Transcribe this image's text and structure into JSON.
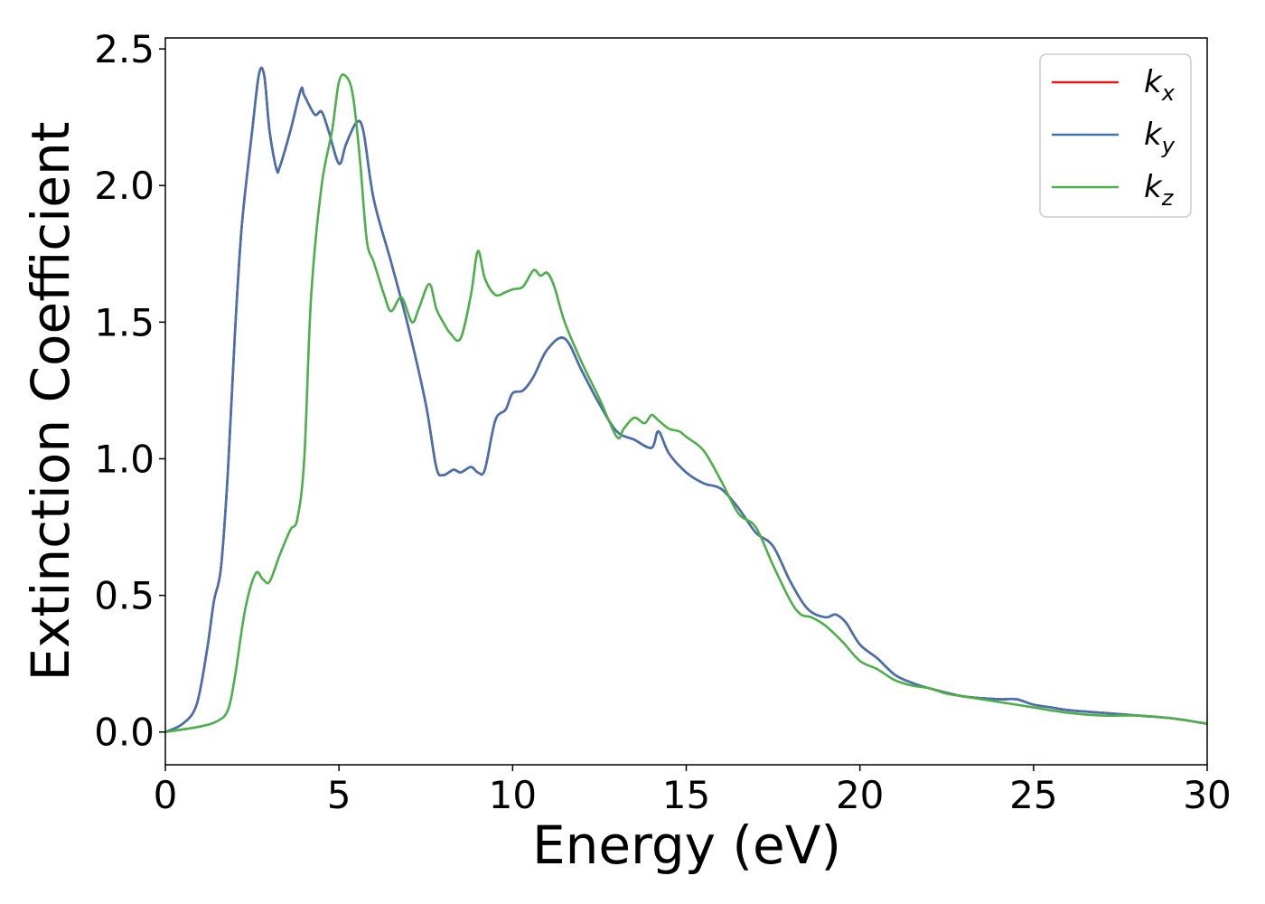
{
  "chart_data": {
    "type": "line",
    "title": "",
    "xlabel": "Energy (eV)",
    "ylabel": "Extinction Coefficient",
    "xlim": [
      0,
      30
    ],
    "ylim": [
      -0.12,
      2.54
    ],
    "xticks": [
      "0",
      "5",
      "10",
      "15",
      "20",
      "25",
      "30"
    ],
    "yticks": [
      "0.0",
      "0.5",
      "1.0",
      "1.5",
      "2.0",
      "2.5"
    ],
    "grid": false,
    "legend_position": "top-right",
    "series": [
      {
        "name": "k",
        "subscript": "x",
        "color": "#e41a1c",
        "x": [
          0,
          0.5,
          0.9,
          1.2,
          1.4,
          1.6,
          1.8,
          2.0,
          2.2,
          2.5,
          2.7,
          2.85,
          3.0,
          3.2,
          3.3,
          3.6,
          3.9,
          4.0,
          4.3,
          4.5,
          4.7,
          5.0,
          5.2,
          5.5,
          5.7,
          6.0,
          6.5,
          7.0,
          7.5,
          7.8,
          8.0,
          8.3,
          8.5,
          8.8,
          9.0,
          9.2,
          9.5,
          9.8,
          10.0,
          10.3,
          10.6,
          11.0,
          11.5,
          12.0,
          12.5,
          13.0,
          13.5,
          14.0,
          14.2,
          14.5,
          15.0,
          15.5,
          16.0,
          16.5,
          17.0,
          17.5,
          18.0,
          18.5,
          19.0,
          19.3,
          19.6,
          20.0,
          20.5,
          21.0,
          21.5,
          22.0,
          23.0,
          24.0,
          24.5,
          25.0,
          25.5,
          26.0,
          27.0,
          28.0,
          29.0,
          30.0
        ],
        "y": [
          0.0,
          0.03,
          0.1,
          0.3,
          0.48,
          0.6,
          0.95,
          1.45,
          1.85,
          2.2,
          2.41,
          2.4,
          2.2,
          2.06,
          2.07,
          2.2,
          2.35,
          2.33,
          2.26,
          2.27,
          2.2,
          2.08,
          2.15,
          2.23,
          2.2,
          1.95,
          1.72,
          1.48,
          1.2,
          0.97,
          0.94,
          0.96,
          0.95,
          0.97,
          0.95,
          0.96,
          1.14,
          1.18,
          1.24,
          1.25,
          1.3,
          1.4,
          1.44,
          1.32,
          1.2,
          1.1,
          1.07,
          1.04,
          1.1,
          1.02,
          0.95,
          0.91,
          0.89,
          0.82,
          0.73,
          0.68,
          0.55,
          0.45,
          0.42,
          0.43,
          0.4,
          0.32,
          0.27,
          0.21,
          0.18,
          0.16,
          0.13,
          0.12,
          0.12,
          0.1,
          0.09,
          0.08,
          0.07,
          0.06,
          0.05,
          0.03
        ]
      },
      {
        "name": "k",
        "subscript": "y",
        "color": "#4472b0",
        "x": [
          0,
          0.5,
          0.9,
          1.2,
          1.4,
          1.6,
          1.8,
          2.0,
          2.2,
          2.5,
          2.7,
          2.85,
          3.0,
          3.2,
          3.3,
          3.6,
          3.9,
          4.0,
          4.3,
          4.5,
          4.7,
          5.0,
          5.2,
          5.5,
          5.7,
          6.0,
          6.5,
          7.0,
          7.5,
          7.8,
          8.0,
          8.3,
          8.5,
          8.8,
          9.0,
          9.2,
          9.5,
          9.8,
          10.0,
          10.3,
          10.6,
          11.0,
          11.5,
          12.0,
          12.5,
          13.0,
          13.5,
          14.0,
          14.2,
          14.5,
          15.0,
          15.5,
          16.0,
          16.5,
          17.0,
          17.5,
          18.0,
          18.5,
          19.0,
          19.3,
          19.6,
          20.0,
          20.5,
          21.0,
          21.5,
          22.0,
          23.0,
          24.0,
          24.5,
          25.0,
          25.5,
          26.0,
          27.0,
          28.0,
          29.0,
          30.0
        ],
        "y": [
          0.0,
          0.03,
          0.1,
          0.3,
          0.48,
          0.6,
          0.95,
          1.45,
          1.85,
          2.2,
          2.41,
          2.4,
          2.2,
          2.06,
          2.07,
          2.2,
          2.35,
          2.33,
          2.26,
          2.27,
          2.2,
          2.08,
          2.15,
          2.23,
          2.2,
          1.95,
          1.72,
          1.48,
          1.2,
          0.97,
          0.94,
          0.96,
          0.95,
          0.97,
          0.95,
          0.96,
          1.14,
          1.18,
          1.24,
          1.25,
          1.3,
          1.4,
          1.44,
          1.32,
          1.2,
          1.1,
          1.07,
          1.04,
          1.1,
          1.02,
          0.95,
          0.91,
          0.89,
          0.82,
          0.73,
          0.68,
          0.55,
          0.45,
          0.42,
          0.43,
          0.4,
          0.32,
          0.27,
          0.21,
          0.18,
          0.16,
          0.13,
          0.12,
          0.12,
          0.1,
          0.09,
          0.08,
          0.07,
          0.06,
          0.05,
          0.03
        ]
      },
      {
        "name": "k",
        "subscript": "z",
        "color": "#4daf4a",
        "x": [
          0,
          1.0,
          1.5,
          1.8,
          2.0,
          2.3,
          2.6,
          2.8,
          3.0,
          3.3,
          3.6,
          3.8,
          4.0,
          4.2,
          4.5,
          4.8,
          5.0,
          5.2,
          5.4,
          5.6,
          5.8,
          6.0,
          6.3,
          6.5,
          6.8,
          7.1,
          7.3,
          7.6,
          7.8,
          8.0,
          8.2,
          8.5,
          8.8,
          9.0,
          9.2,
          9.5,
          9.8,
          10.0,
          10.3,
          10.6,
          10.8,
          11.0,
          11.2,
          11.5,
          12.0,
          12.5,
          13.0,
          13.2,
          13.5,
          13.8,
          14.0,
          14.2,
          14.5,
          14.8,
          15.0,
          15.5,
          16.0,
          16.5,
          17.0,
          17.5,
          18.0,
          18.3,
          18.6,
          19.0,
          19.5,
          20.0,
          20.5,
          21.0,
          21.5,
          22.0,
          22.5,
          23.0,
          24.0,
          25.0,
          26.0,
          27.0,
          28.0,
          29.0,
          30.0
        ],
        "y": [
          0.0,
          0.02,
          0.04,
          0.08,
          0.2,
          0.45,
          0.58,
          0.56,
          0.55,
          0.65,
          0.74,
          0.78,
          1.0,
          1.6,
          2.0,
          2.2,
          2.38,
          2.4,
          2.33,
          2.1,
          1.8,
          1.72,
          1.6,
          1.54,
          1.59,
          1.5,
          1.55,
          1.64,
          1.55,
          1.5,
          1.46,
          1.44,
          1.6,
          1.76,
          1.66,
          1.6,
          1.61,
          1.62,
          1.63,
          1.69,
          1.67,
          1.68,
          1.63,
          1.5,
          1.35,
          1.22,
          1.08,
          1.11,
          1.15,
          1.13,
          1.16,
          1.14,
          1.11,
          1.1,
          1.08,
          1.03,
          0.92,
          0.8,
          0.75,
          0.61,
          0.48,
          0.43,
          0.42,
          0.39,
          0.33,
          0.26,
          0.23,
          0.19,
          0.17,
          0.16,
          0.14,
          0.13,
          0.11,
          0.09,
          0.07,
          0.06,
          0.06,
          0.05,
          0.03
        ]
      }
    ]
  }
}
